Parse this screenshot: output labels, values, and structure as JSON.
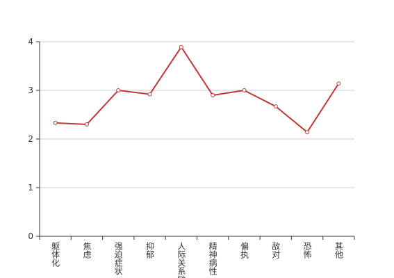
{
  "chart_data": {
    "type": "line",
    "categories": [
      "躯体化",
      "焦虑",
      "强迫症状",
      "抑郁",
      "人际关系敏感",
      "精神病性",
      "偏执",
      "敌对",
      "恐怖",
      "其他"
    ],
    "values": [
      2.33,
      2.3,
      3.0,
      2.92,
      3.89,
      2.9,
      3.0,
      2.67,
      2.14,
      3.14
    ],
    "color": "#c23531",
    "ylim": [
      0,
      4
    ],
    "yticks": [
      0,
      1,
      2,
      3,
      4
    ],
    "grid": true
  }
}
